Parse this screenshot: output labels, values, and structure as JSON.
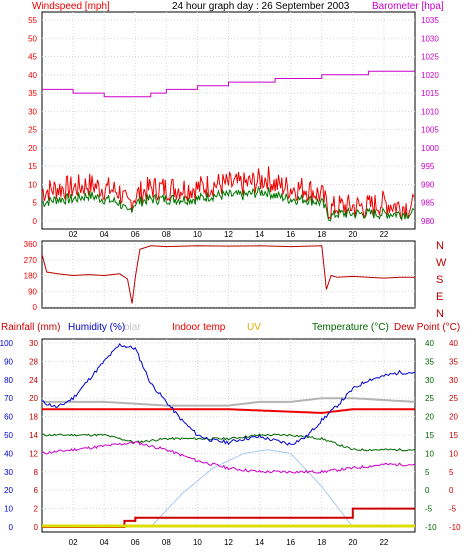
{
  "header": {
    "windspeed_label": "Windspeed [mph]",
    "title": "24 hour graph day : 26 September 2003",
    "barometer_label": "Barometer [hpa]"
  },
  "legend": {
    "rainfall": "Rainfall (mm)",
    "humidity": "Humidity (%)",
    "solar": "olar",
    "indoor": "Indoor temp",
    "uv": "UV",
    "temperature": "Temperature (°C)",
    "dewpoint": "Dew Point (°C)"
  },
  "colors": {
    "windspeed": "#ee0000",
    "windspeed_avg": "#007700",
    "barometer": "#cc00cc",
    "wind_dir": "#bb0000",
    "rainfall": "#cc0000",
    "humidity": "#0000cc",
    "solar": "#a8c8f0",
    "indoor": "#ee0000",
    "uv": "#dddd00",
    "temperature": "#006600",
    "dewpoint": "#cc00cc",
    "gray_line": "#b4b4b4"
  },
  "chart_data": [
    {
      "type": "line",
      "x_ticks": [
        "02",
        "04",
        "06",
        "08",
        "10",
        "12",
        "14",
        "16",
        "18",
        "20",
        "22"
      ],
      "y_left_ticks": [
        "55",
        "50",
        "45",
        "40",
        "35",
        "30",
        "25",
        "20",
        "15",
        "10",
        "5",
        "0"
      ],
      "y_right_ticks": [
        "1035",
        "1030",
        "1025",
        "1020",
        "1015",
        "1010",
        "1005",
        "1000",
        "995",
        "990",
        "985",
        "980"
      ],
      "ylim_left": [
        0,
        55
      ],
      "ylim_right": [
        980,
        1035
      ],
      "series": [
        {
          "key": "windspeed",
          "axis": "left",
          "x": [
            0,
            1,
            2,
            3,
            4,
            5,
            5.5,
            6,
            7,
            8,
            9,
            10,
            11,
            12,
            13,
            14,
            14.5,
            15,
            16,
            17,
            18,
            18.5,
            19,
            20,
            21,
            22,
            23,
            24
          ],
          "y": [
            8,
            9,
            9,
            10,
            9,
            8,
            4,
            7,
            9,
            9,
            9,
            9,
            10,
            10,
            10,
            11,
            12,
            10,
            9,
            9,
            7,
            3,
            4,
            4,
            4,
            5,
            4,
            4
          ]
        },
        {
          "key": "windspeed_avg",
          "axis": "left",
          "x": [
            0,
            1,
            2,
            3,
            4,
            5,
            5.5,
            6,
            7,
            8,
            9,
            10,
            11,
            12,
            13,
            14,
            14.5,
            15,
            16,
            17,
            18,
            18.5,
            19,
            20,
            21,
            22,
            23,
            24
          ],
          "y": [
            5,
            6,
            6,
            7,
            6,
            5,
            2,
            5,
            6,
            6,
            6,
            6,
            7,
            7,
            7,
            8,
            8,
            7,
            6,
            6,
            5,
            1,
            2,
            2,
            2,
            2,
            2,
            2
          ]
        },
        {
          "key": "barometer",
          "axis": "right",
          "x": [
            0,
            1,
            2,
            3,
            4,
            5,
            6,
            7,
            8,
            9,
            10,
            11,
            12,
            13,
            14,
            15,
            16,
            17,
            18,
            19,
            20,
            21,
            22,
            23,
            24
          ],
          "y": [
            1016,
            1016,
            1015,
            1015,
            1014,
            1014,
            1014,
            1015,
            1016,
            1016,
            1017,
            1017,
            1018,
            1018,
            1018,
            1019,
            1019,
            1019,
            1020,
            1020,
            1020,
            1021,
            1021,
            1021,
            1021
          ]
        }
      ]
    },
    {
      "type": "line",
      "x_ticks": [],
      "y_left_ticks": [
        "360",
        "270",
        "180",
        "90",
        "0"
      ],
      "y_right_labels": [
        "N",
        "W",
        "S",
        "E",
        "N"
      ],
      "ylim": [
        0,
        360
      ],
      "series": [
        {
          "key": "wind_dir",
          "x": [
            0,
            0.3,
            1,
            2,
            3,
            4,
            5,
            5.5,
            5.8,
            6,
            6.3,
            7,
            8,
            10,
            12,
            14,
            16,
            18,
            18.3,
            18.6,
            19,
            20,
            21,
            22,
            23,
            24
          ],
          "y": [
            300,
            200,
            190,
            180,
            185,
            180,
            190,
            160,
            20,
            170,
            330,
            350,
            345,
            350,
            348,
            350,
            345,
            350,
            100,
            180,
            170,
            175,
            170,
            165,
            170,
            170
          ]
        }
      ]
    },
    {
      "type": "line",
      "x_ticks": [
        "02",
        "04",
        "06",
        "08",
        "10",
        "12",
        "14",
        "16",
        "18",
        "20",
        "22"
      ],
      "humidity_ticks": [
        "100",
        "90",
        "80",
        "70",
        "60",
        "50",
        "40",
        "30",
        "20",
        "10",
        "0"
      ],
      "rain_ticks": [
        "30",
        "28",
        "24",
        "20",
        "18",
        "14",
        "12",
        "8",
        "6",
        "2",
        "0"
      ],
      "temp_ticks": [
        "40",
        "35",
        "30",
        "25",
        "20",
        "15",
        "10",
        "5",
        "0",
        "-5",
        "-10"
      ],
      "humidity_range": [
        0,
        100
      ],
      "temp_range": [
        -10,
        40
      ],
      "series": [
        {
          "key": "humidity",
          "x": [
            0,
            1,
            2,
            3,
            4,
            5,
            6,
            7,
            8,
            9,
            10,
            11,
            12,
            13,
            14,
            15,
            16,
            17,
            18,
            19,
            20,
            21,
            22,
            23,
            24
          ],
          "y": [
            68,
            65,
            70,
            80,
            90,
            99,
            97,
            78,
            68,
            58,
            50,
            47,
            46,
            48,
            49,
            47,
            45,
            49,
            58,
            66,
            75,
            80,
            82,
            84,
            84
          ]
        },
        {
          "key": "gray_line",
          "x": [
            0,
            4,
            8,
            12,
            14,
            16,
            18,
            20,
            24
          ],
          "y": [
            24,
            24,
            23,
            23,
            24,
            24,
            25,
            25,
            24
          ]
        },
        {
          "key": "indoor",
          "x": [
            0,
            6,
            12,
            18,
            20,
            24
          ],
          "y": [
            22,
            22,
            22,
            21,
            22,
            22
          ]
        },
        {
          "key": "temperature",
          "x": [
            0,
            2,
            4,
            6,
            8,
            10,
            12,
            14,
            16,
            18,
            20,
            22,
            24
          ],
          "y": [
            15,
            15,
            15,
            13,
            14,
            14,
            14,
            15,
            15,
            14,
            11,
            11,
            11
          ]
        },
        {
          "key": "dewpoint",
          "x": [
            0,
            2,
            4,
            6,
            8,
            10,
            12,
            14,
            16,
            18,
            20,
            22,
            24
          ],
          "y": [
            10,
            11,
            12,
            13,
            11,
            8,
            6,
            5,
            5,
            5,
            6,
            7,
            7
          ]
        },
        {
          "key": "solar",
          "x": [
            7,
            9,
            11,
            13,
            14.5,
            16,
            18,
            20
          ],
          "y": [
            0,
            18,
            32,
            40,
            42,
            40,
            22,
            0
          ]
        },
        {
          "key": "rainfall",
          "x": [
            0,
            5.3,
            5.3,
            6,
            6,
            12,
            12,
            18,
            18,
            20,
            20,
            24
          ],
          "y": [
            0,
            0,
            1,
            1,
            1.5,
            1.5,
            1.5,
            1.5,
            1.5,
            1.5,
            3,
            3
          ]
        },
        {
          "key": "uv",
          "x": [
            0,
            24
          ],
          "y": [
            0.3,
            0.3
          ]
        }
      ]
    }
  ]
}
